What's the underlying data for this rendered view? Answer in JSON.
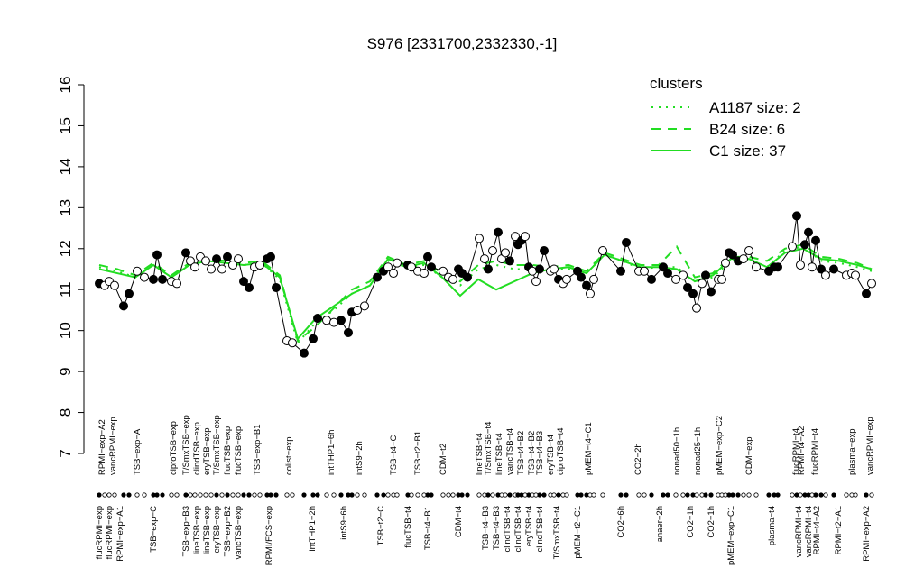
{
  "chart_data": {
    "type": "scatter",
    "title": "S976 [2331700,2332330,-1]",
    "ylim": [
      7,
      16
    ],
    "yticks": [
      7,
      8,
      9,
      10,
      11,
      12,
      13,
      14,
      15,
      16
    ],
    "xlim": [
      0,
      875
    ],
    "point_line_color": "#000000",
    "x": [
      10,
      16,
      21,
      27,
      37,
      43,
      52,
      60,
      70,
      74,
      80,
      90,
      96,
      106,
      111,
      116,
      122,
      128,
      134,
      140,
      146,
      152,
      158,
      164,
      170,
      176,
      182,
      188,
      196,
      200,
      206,
      218,
      224,
      237,
      247,
      252,
      262,
      270,
      278,
      286,
      290,
      296,
      304,
      318,
      325,
      330,
      336,
      340,
      352,
      356,
      363,
      370,
      374,
      378,
      391,
      397,
      402,
      408,
      412,
      418,
      431,
      437,
      441,
      446,
      452,
      456,
      460,
      465,
      471,
      474,
      478,
      482,
      486,
      490,
      494,
      498,
      503,
      510,
      514,
      519,
      524,
      528,
      540,
      544,
      550,
      554,
      558,
      568,
      588,
      594,
      608,
      614,
      622,
      635,
      640,
      649,
      657,
      662,
      668,
      672,
      678,
      682,
      688,
      696,
      700,
      704,
      708,
      712,
      718,
      724,
      730,
      738,
      752,
      758,
      762,
      778,
      783,
      787,
      792,
      796,
      800,
      804,
      810,
      815,
      824,
      838,
      844,
      848,
      860,
      866
    ],
    "values": [
      11.15,
      11.1,
      11.2,
      11.1,
      10.6,
      10.9,
      11.45,
      11.3,
      11.25,
      11.85,
      11.25,
      11.2,
      11.15,
      11.9,
      11.7,
      11.55,
      11.8,
      11.7,
      11.5,
      11.75,
      11.5,
      11.8,
      11.6,
      11.75,
      11.2,
      11.05,
      11.55,
      11.6,
      11.75,
      11.8,
      11.05,
      9.75,
      9.7,
      9.45,
      9.8,
      10.3,
      10.25,
      10.2,
      10.25,
      9.95,
      10.45,
      10.5,
      10.6,
      11.3,
      11.45,
      11.55,
      11.4,
      11.65,
      11.6,
      11.55,
      11.45,
      11.4,
      11.8,
      11.55,
      11.45,
      11.3,
      11.25,
      11.5,
      11.4,
      11.3,
      12.25,
      11.75,
      11.5,
      11.95,
      12.4,
      11.75,
      11.9,
      11.7,
      12.3,
      12.1,
      12.2,
      12.3,
      11.55,
      11.45,
      11.2,
      11.5,
      11.95,
      11.45,
      11.5,
      11.25,
      11.15,
      11.25,
      11.45,
      11.3,
      11.1,
      10.9,
      11.25,
      11.95,
      11.45,
      12.15,
      11.45,
      11.45,
      11.25,
      11.55,
      11.4,
      11.25,
      11.35,
      11.05,
      10.9,
      10.55,
      11.15,
      11.35,
      10.95,
      11.25,
      11.25,
      11.65,
      11.9,
      11.85,
      11.7,
      11.75,
      11.95,
      11.55,
      11.45,
      11.55,
      11.55,
      12.05,
      12.8,
      11.6,
      12.1,
      12.4,
      11.55,
      12.2,
      11.5,
      11.35,
      11.5,
      11.35,
      11.4,
      11.35,
      10.9,
      11.15
    ],
    "filled": [
      true,
      false,
      false,
      false,
      true,
      true,
      false,
      false,
      true,
      true,
      true,
      false,
      false,
      true,
      false,
      false,
      false,
      false,
      false,
      true,
      false,
      true,
      false,
      false,
      true,
      true,
      false,
      false,
      true,
      true,
      true,
      false,
      false,
      true,
      true,
      true,
      false,
      false,
      true,
      true,
      true,
      false,
      false,
      true,
      true,
      false,
      false,
      false,
      true,
      false,
      false,
      false,
      true,
      true,
      false,
      false,
      false,
      true,
      true,
      true,
      false,
      false,
      true,
      false,
      true,
      false,
      false,
      true,
      false,
      true,
      true,
      false,
      true,
      false,
      false,
      true,
      true,
      false,
      false,
      true,
      false,
      false,
      true,
      true,
      true,
      false,
      false,
      false,
      true,
      true,
      false,
      false,
      true,
      true,
      true,
      false,
      false,
      true,
      true,
      false,
      false,
      true,
      true,
      false,
      false,
      false,
      true,
      true,
      true,
      false,
      false,
      false,
      true,
      true,
      true,
      false,
      true,
      false,
      true,
      true,
      false,
      true,
      true,
      false,
      true,
      false,
      false,
      false,
      true,
      false
    ],
    "top_labels": {
      "x": [
        13,
        25,
        52,
        92,
        106,
        118,
        129,
        140,
        152,
        164,
        185,
        220,
        267,
        298,
        336,
        363,
        391,
        431,
        441,
        453,
        465,
        477,
        489,
        498,
        510,
        521,
        552,
        607,
        650,
        673,
        697,
        730,
        782,
        788,
        803,
        844,
        864
      ],
      "text": [
        "RPMI−exp−A2",
        "vancRPMI−exp",
        "TSB−exp−A",
        "ciproTSB−exp",
        "T/SmxTSB−exp",
        "clindTSB−exp",
        "eryTSB−exp",
        "T/SmxTSB−exp",
        "flucTSB−exp",
        "flucTSB−exp",
        "TSB−exp−B1",
        "colist−exp",
        "intTHP1−6h",
        "intS9−2h",
        "TSB−t4−C",
        "TSB−t2−B1",
        "CDM−t2",
        "lineTSB−t4",
        "T/SmxTSB−t4",
        "lineTSB−t4",
        "vancTSB−t4",
        "TSB−t4−B2",
        "TSB−t4−B2",
        "TSB−t4−B3",
        "eryTSB−t4",
        "ciproTSB−t4",
        "pMEM−t4−C1",
        "CO2−2h",
        "nonad50−1h",
        "nonad25−1h",
        "pMEM−exp−C2",
        "CDM−exp",
        "flucRPMI−t4",
        "RPMI−t4−A2",
        "flucRPMI−t4",
        "plasma−exp",
        "vancRPMI−exp"
      ]
    },
    "bottom_labels": {
      "x": [
        10,
        21,
        33,
        70,
        106,
        118,
        129,
        140,
        152,
        164,
        198,
        246,
        281,
        322,
        352,
        374,
        408,
        438,
        450,
        462,
        474,
        486,
        498,
        517,
        540,
        588,
        631,
        665,
        688,
        710,
        755,
        785,
        796,
        805,
        829,
        860
      ],
      "text": [
        "flucRPMI−exp",
        "flucRPMI−exp",
        "RPMI−exp−A1",
        "TSB−exp−C",
        "TSB−exp−B3",
        "lineTSB−exp",
        "lineTSB−exp",
        "eryTSB−exp",
        "TSB−exp−B2",
        "vancTSB−exp",
        "RPMI/FCS−exp",
        "intTHP1−2h",
        "intS9−6h",
        "TSB−t2−C",
        "flucTSB−t4",
        "TSB−t4−B1",
        "CDM−t4",
        "TSB−t4−B3",
        "TSB−t4−B3",
        "clindTSB−t4",
        "clindTSB−t4",
        "eryTSB−t4",
        "clindTSB−t4",
        "T/SmxTSB−t4",
        "pMEM−t2−C1",
        "CO2−6h",
        "anaer−2h",
        "CO2−1h",
        "CO2−1h",
        "pMEM−exp−C1",
        "plasma−t4",
        "vancRPMI−t4",
        "vancRPMI−t4",
        "RPMI−t4−A2",
        "RPMI−t2−A1",
        "RPMI−exp−A2"
      ]
    },
    "legend_title": "clusters",
    "legend": "top-right",
    "cluster_x": [
      10,
      30,
      50,
      70,
      90,
      110,
      130,
      150,
      170,
      190,
      210,
      230,
      250,
      270,
      290,
      310,
      330,
      350,
      370,
      390,
      410,
      430,
      450,
      470,
      490,
      510,
      530,
      550,
      570,
      590,
      610,
      630,
      650,
      670,
      690,
      710,
      730,
      750,
      770,
      790,
      810,
      830,
      850,
      866
    ],
    "series": [
      {
        "name": "A1187 size: 2",
        "color": "#22dd22",
        "linestyle": "dotted",
        "values": [
          11.55,
          11.45,
          11.3,
          11.6,
          11.3,
          11.6,
          11.7,
          11.65,
          11.6,
          11.65,
          11.25,
          9.7,
          10.2,
          10.5,
          10.9,
          11.1,
          11.7,
          11.55,
          11.6,
          11.3,
          11.1,
          11.5,
          11.6,
          11.5,
          11.5,
          11.5,
          11.5,
          11.4,
          11.85,
          11.7,
          11.5,
          11.55,
          11.55,
          11.2,
          11.3,
          11.7,
          11.75,
          11.55,
          11.95,
          12.05,
          11.7,
          11.65,
          11.55,
          11.45
        ]
      },
      {
        "name": "B24 size: 6",
        "color": "#22dd22",
        "linestyle": "dashed",
        "values": [
          11.6,
          11.5,
          11.35,
          11.65,
          11.35,
          11.65,
          11.75,
          11.7,
          11.65,
          11.7,
          11.35,
          9.75,
          10.1,
          10.55,
          11.0,
          11.2,
          11.8,
          11.6,
          11.7,
          11.4,
          11.2,
          11.6,
          11.7,
          11.6,
          11.6,
          11.55,
          11.6,
          11.45,
          11.9,
          11.75,
          11.6,
          11.6,
          12.05,
          11.3,
          11.4,
          11.8,
          11.8,
          11.7,
          12.0,
          12.1,
          11.8,
          11.75,
          11.65,
          11.5
        ]
      },
      {
        "name": "C1 size: 37",
        "color": "#22dd22",
        "linestyle": "solid",
        "values": [
          11.5,
          11.4,
          11.3,
          11.6,
          11.3,
          11.6,
          11.7,
          11.65,
          11.6,
          11.65,
          11.3,
          9.8,
          10.3,
          10.6,
          10.9,
          11.1,
          11.75,
          11.55,
          11.65,
          11.3,
          10.85,
          11.25,
          11.0,
          11.2,
          11.4,
          11.5,
          11.55,
          11.4,
          11.85,
          11.7,
          11.55,
          11.55,
          11.5,
          11.2,
          11.35,
          11.75,
          11.75,
          11.55,
          11.9,
          12.0,
          11.75,
          11.7,
          11.6,
          11.5
        ]
      }
    ]
  }
}
